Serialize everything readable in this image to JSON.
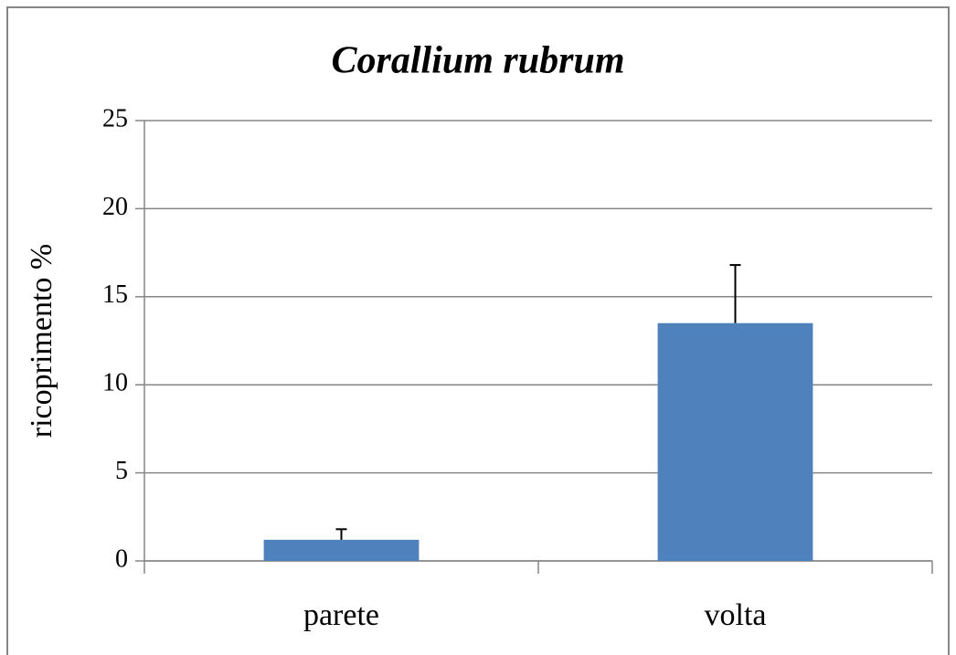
{
  "chart_data": {
    "type": "bar",
    "title": "Corallium rubrum",
    "ylabel": "ricoprimento %",
    "categories": [
      "parete",
      "volta"
    ],
    "values": [
      1.2,
      13.5
    ],
    "errors": [
      0.6,
      3.3
    ],
    "color": "#4f81bd",
    "ylim": [
      0,
      25
    ],
    "yticks": [
      0,
      5,
      10,
      15,
      20,
      25
    ],
    "grid": true
  }
}
